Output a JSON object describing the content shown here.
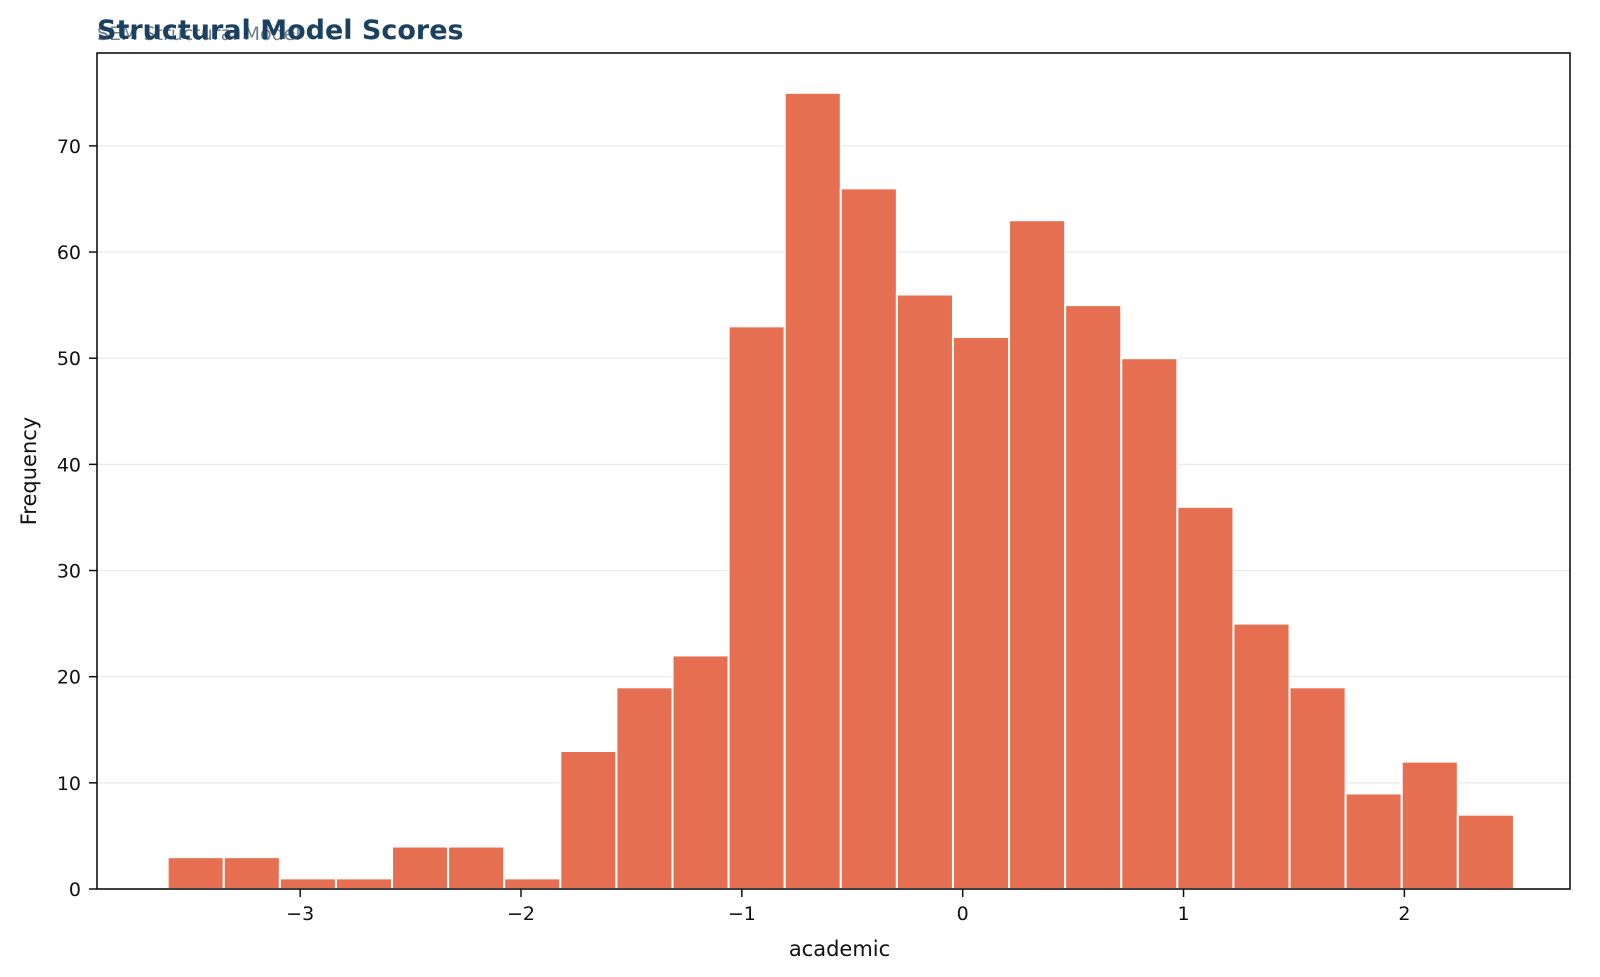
{
  "chart_data": {
    "type": "bar",
    "title": "Structural Model Scores",
    "subtitle": "SEM Structural Model",
    "xlabel": "academic",
    "ylabel": "Frequency",
    "xlim": [
      -3.92,
      2.75
    ],
    "ylim": [
      0,
      78.75
    ],
    "x_ticks": [
      -3,
      -2,
      -1,
      0,
      1,
      2
    ],
    "y_ticks": [
      0,
      10,
      20,
      30,
      40,
      50,
      60,
      70
    ],
    "grid": "horizontal",
    "bar_color": "#e76f51",
    "title_color": "#1b4060",
    "bins": [
      {
        "start": -3.6,
        "end": -3.346,
        "count": 3
      },
      {
        "start": -3.346,
        "end": -3.092,
        "count": 3
      },
      {
        "start": -3.092,
        "end": -2.838,
        "count": 1
      },
      {
        "start": -2.838,
        "end": -2.584,
        "count": 1
      },
      {
        "start": -2.584,
        "end": -2.33,
        "count": 4
      },
      {
        "start": -2.33,
        "end": -2.076,
        "count": 4
      },
      {
        "start": -2.076,
        "end": -1.822,
        "count": 1
      },
      {
        "start": -1.822,
        "end": -1.568,
        "count": 13
      },
      {
        "start": -1.568,
        "end": -1.314,
        "count": 19
      },
      {
        "start": -1.314,
        "end": -1.06,
        "count": 22
      },
      {
        "start": -1.06,
        "end": -0.806,
        "count": 53
      },
      {
        "start": -0.806,
        "end": -0.552,
        "count": 75
      },
      {
        "start": -0.552,
        "end": -0.298,
        "count": 66
      },
      {
        "start": -0.298,
        "end": -0.044,
        "count": 56
      },
      {
        "start": -0.044,
        "end": 0.21,
        "count": 52
      },
      {
        "start": 0.21,
        "end": 0.464,
        "count": 63
      },
      {
        "start": 0.464,
        "end": 0.718,
        "count": 55
      },
      {
        "start": 0.718,
        "end": 0.972,
        "count": 50
      },
      {
        "start": 0.972,
        "end": 1.226,
        "count": 36
      },
      {
        "start": 1.226,
        "end": 1.48,
        "count": 25
      },
      {
        "start": 1.48,
        "end": 1.734,
        "count": 19
      },
      {
        "start": 1.734,
        "end": 1.988,
        "count": 9
      },
      {
        "start": 1.988,
        "end": 2.242,
        "count": 12
      },
      {
        "start": 2.242,
        "end": 2.496,
        "count": 7
      }
    ]
  }
}
